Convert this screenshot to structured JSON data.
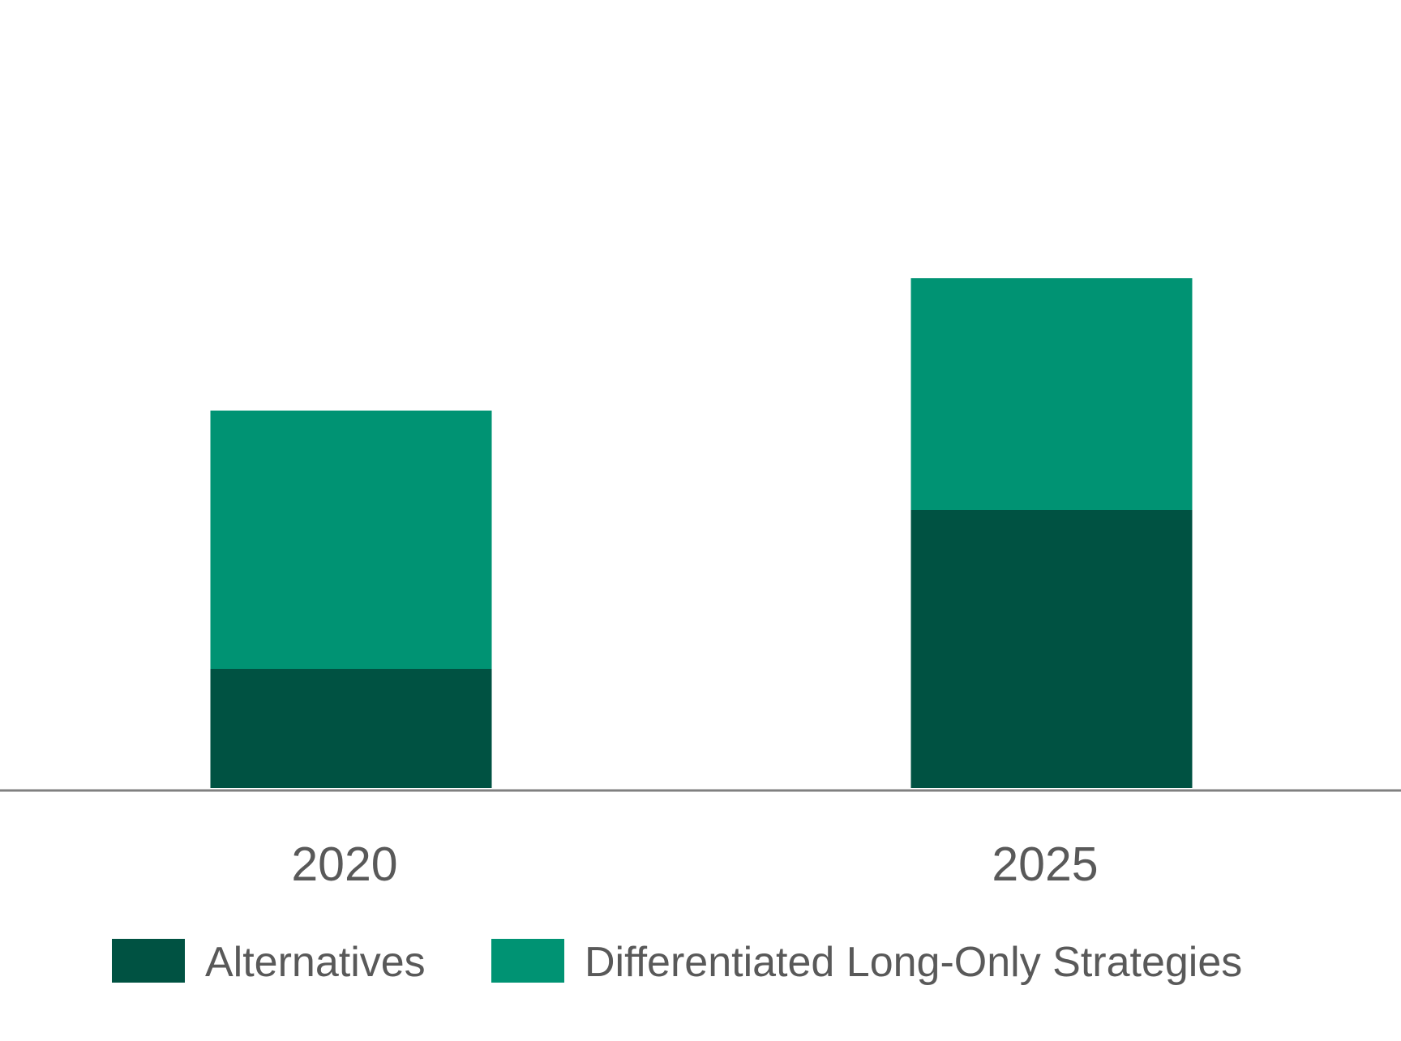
{
  "chart_data": {
    "type": "bar",
    "stacked": true,
    "categories": [
      "2020",
      "2025"
    ],
    "series": [
      {
        "name": "Alternatives",
        "values": [
          18,
          42
        ],
        "color": "#005242"
      },
      {
        "name": "Differentiated Long-Only Strategies",
        "values": [
          39,
          35
        ],
        "color": "#009373"
      }
    ],
    "title": "",
    "xlabel": "",
    "ylabel": "",
    "ylim": [
      0,
      108
    ],
    "grid": false,
    "y_axis_visible": false,
    "legend_position": "bottom",
    "axis_color": "#808080",
    "text_color": "#595959"
  }
}
